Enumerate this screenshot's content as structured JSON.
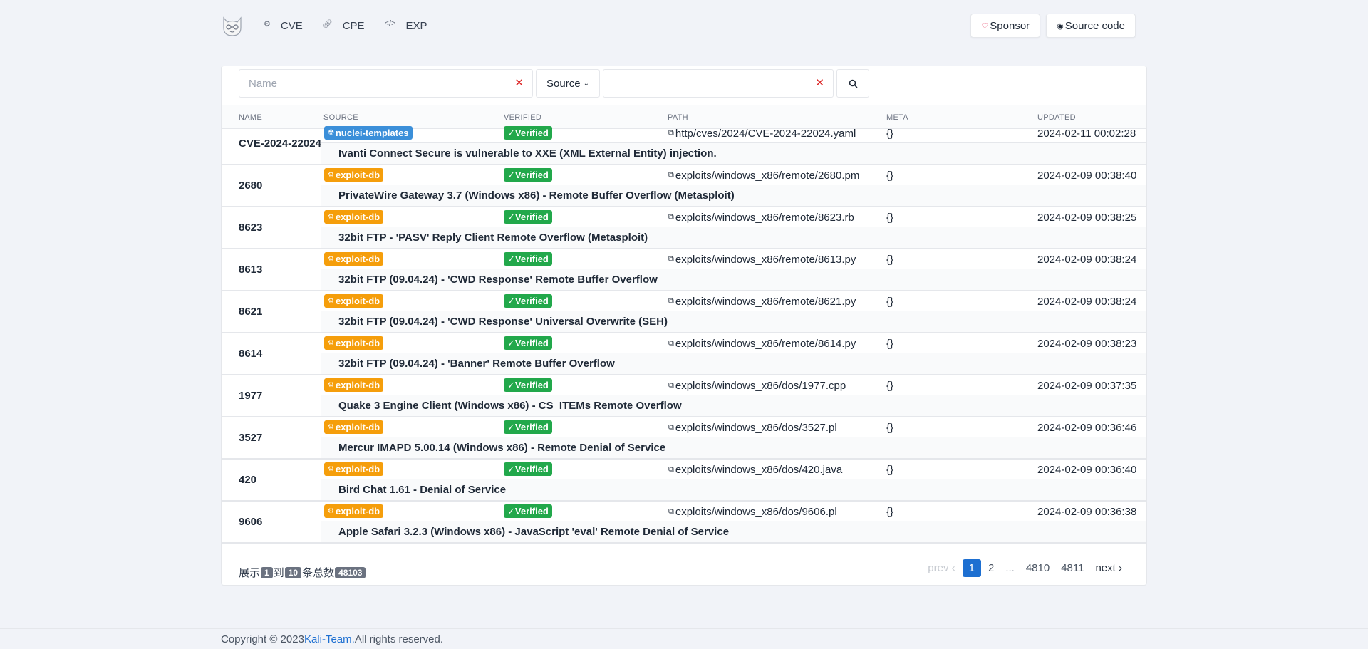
{
  "nav": {
    "items": [
      {
        "label": "CVE",
        "icon": "gear-icon"
      },
      {
        "label": "CPE",
        "icon": "link-icon"
      },
      {
        "label": "EXP",
        "icon": "code-icon"
      }
    ],
    "sponsor_label": "Sponsor",
    "source_code_label": "Source code"
  },
  "search": {
    "name_placeholder": "Name",
    "source_label": "Source",
    "source_value": ""
  },
  "table": {
    "headers": [
      "NAME",
      "SOURCE",
      "VERIFIED",
      "PATH",
      "META",
      "UPDATED"
    ],
    "rows": [
      {
        "name": "CVE-2024-22024",
        "source": "nuclei-templates",
        "verified": "Verified",
        "path": "http/cves/2024/CVE-2024-22024.yaml",
        "meta": "{}",
        "updated": "2024-02-11 00:02:28",
        "description": "Ivanti Connect Secure is vulnerable to XXE (XML External Entity) injection."
      },
      {
        "name": "2680",
        "source": "exploit-db",
        "verified": "Verified",
        "path": "exploits/windows_x86/remote/2680.pm",
        "meta": "{}",
        "updated": "2024-02-09 00:38:40",
        "description": "PrivateWire Gateway 3.7 (Windows x86) - Remote Buffer Overflow (Metasploit)"
      },
      {
        "name": "8623",
        "source": "exploit-db",
        "verified": "Verified",
        "path": "exploits/windows_x86/remote/8623.rb",
        "meta": "{}",
        "updated": "2024-02-09 00:38:25",
        "description": "32bit FTP - 'PASV' Reply Client Remote Overflow (Metasploit)"
      },
      {
        "name": "8613",
        "source": "exploit-db",
        "verified": "Verified",
        "path": "exploits/windows_x86/remote/8613.py",
        "meta": "{}",
        "updated": "2024-02-09 00:38:24",
        "description": "32bit FTP (09.04.24) - 'CWD Response' Remote Buffer Overflow"
      },
      {
        "name": "8621",
        "source": "exploit-db",
        "verified": "Verified",
        "path": "exploits/windows_x86/remote/8621.py",
        "meta": "{}",
        "updated": "2024-02-09 00:38:24",
        "description": "32bit FTP (09.04.24) - 'CWD Response' Universal Overwrite (SEH)"
      },
      {
        "name": "8614",
        "source": "exploit-db",
        "verified": "Verified",
        "path": "exploits/windows_x86/remote/8614.py",
        "meta": "{}",
        "updated": "2024-02-09 00:38:23",
        "description": "32bit FTP (09.04.24) - 'Banner' Remote Buffer Overflow"
      },
      {
        "name": "1977",
        "source": "exploit-db",
        "verified": "Verified",
        "path": "exploits/windows_x86/dos/1977.cpp",
        "meta": "{}",
        "updated": "2024-02-09 00:37:35",
        "description": "Quake 3 Engine Client (Windows x86) - CS_ITEMs Remote Overflow"
      },
      {
        "name": "3527",
        "source": "exploit-db",
        "verified": "Verified",
        "path": "exploits/windows_x86/dos/3527.pl",
        "meta": "{}",
        "updated": "2024-02-09 00:36:46",
        "description": "Mercur IMAPD 5.00.14 (Windows x86) - Remote Denial of Service"
      },
      {
        "name": "420",
        "source": "exploit-db",
        "verified": "Verified",
        "path": "exploits/windows_x86/dos/420.java",
        "meta": "{}",
        "updated": "2024-02-09 00:36:40",
        "description": "Bird Chat 1.61 - Denial of Service"
      },
      {
        "name": "9606",
        "source": "exploit-db",
        "verified": "Verified",
        "path": "exploits/windows_x86/dos/9606.pl",
        "meta": "{}",
        "updated": "2024-02-09 00:36:38",
        "description": "Apple Safari 3.2.3 (Windows x86) - JavaScript 'eval' Remote Denial of Service"
      }
    ]
  },
  "pagination_info": {
    "prefix": "展示",
    "from": "1",
    "to_label": "到",
    "to": "10",
    "total_label": "条总数",
    "total": "48103"
  },
  "pager": {
    "prev": "prev",
    "pages": [
      "1",
      "2",
      "...",
      "4810",
      "4811"
    ],
    "active": "1",
    "next": "next"
  },
  "footer": {
    "prefix": "Copyright © 2023",
    "link": "Kali-Team.",
    "suffix": "All rights reserved."
  },
  "colors": {
    "nuclei_badge": "#3b8fd9",
    "exploit_badge": "#f59e0b",
    "verified_badge": "#22a84b",
    "active_page": "#1d6fd1"
  }
}
